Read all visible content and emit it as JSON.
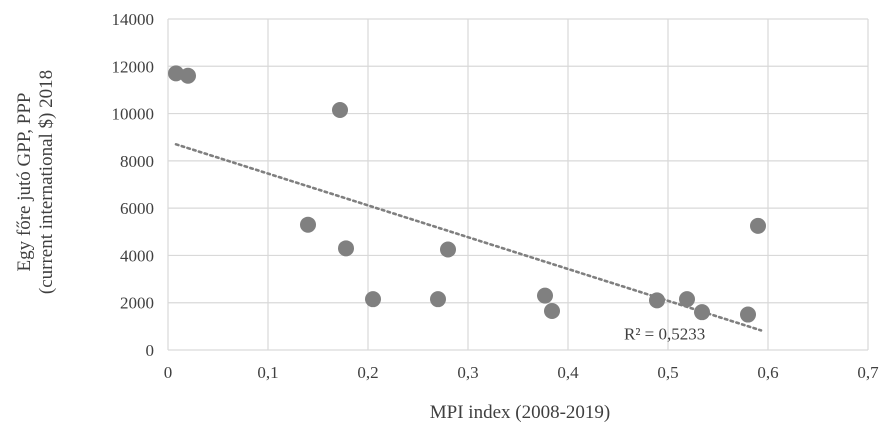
{
  "chart_data": {
    "type": "scatter",
    "title": "",
    "xlabel": "MPI index (2008-2019)",
    "ylabel_lines": [
      "Egy főre jutó GPP, PPP",
      "(current international $) 2018"
    ],
    "xlim": [
      0,
      0.7
    ],
    "ylim": [
      0,
      14000
    ],
    "x_ticks": [
      0,
      0.1,
      0.2,
      0.3,
      0.4,
      0.5,
      0.6,
      0.7
    ],
    "x_tick_labels": [
      "0",
      "0,1",
      "0,2",
      "0,3",
      "0,4",
      "0,5",
      "0,6",
      "0,7"
    ],
    "y_ticks": [
      0,
      2000,
      4000,
      6000,
      8000,
      10000,
      12000,
      14000
    ],
    "y_tick_labels": [
      "0",
      "2000",
      "4000",
      "6000",
      "8000",
      "10000",
      "12000",
      "14000"
    ],
    "grid": true,
    "legend": "none",
    "points": [
      {
        "x": 0.008,
        "y": 11700
      },
      {
        "x": 0.02,
        "y": 11600
      },
      {
        "x": 0.14,
        "y": 5300
      },
      {
        "x": 0.172,
        "y": 10150
      },
      {
        "x": 0.178,
        "y": 4300
      },
      {
        "x": 0.205,
        "y": 2150
      },
      {
        "x": 0.27,
        "y": 2150
      },
      {
        "x": 0.28,
        "y": 4250
      },
      {
        "x": 0.377,
        "y": 2300
      },
      {
        "x": 0.384,
        "y": 1650
      },
      {
        "x": 0.489,
        "y": 2100
      },
      {
        "x": 0.519,
        "y": 2150
      },
      {
        "x": 0.534,
        "y": 1600
      },
      {
        "x": 0.58,
        "y": 1500
      },
      {
        "x": 0.59,
        "y": 5250
      }
    ],
    "trendline": {
      "type": "linear",
      "x": [
        0.008,
        0.593
      ],
      "y": [
        8700,
        830
      ],
      "style": "dotted",
      "label": "R² = 0,5233",
      "label_anchor": {
        "x": 0.456,
        "y": 450
      }
    },
    "colors": {
      "points": "#808080",
      "trendline": "#7f7f7f",
      "grid": "#d9d9d9",
      "text": "#3f3f3f"
    }
  }
}
